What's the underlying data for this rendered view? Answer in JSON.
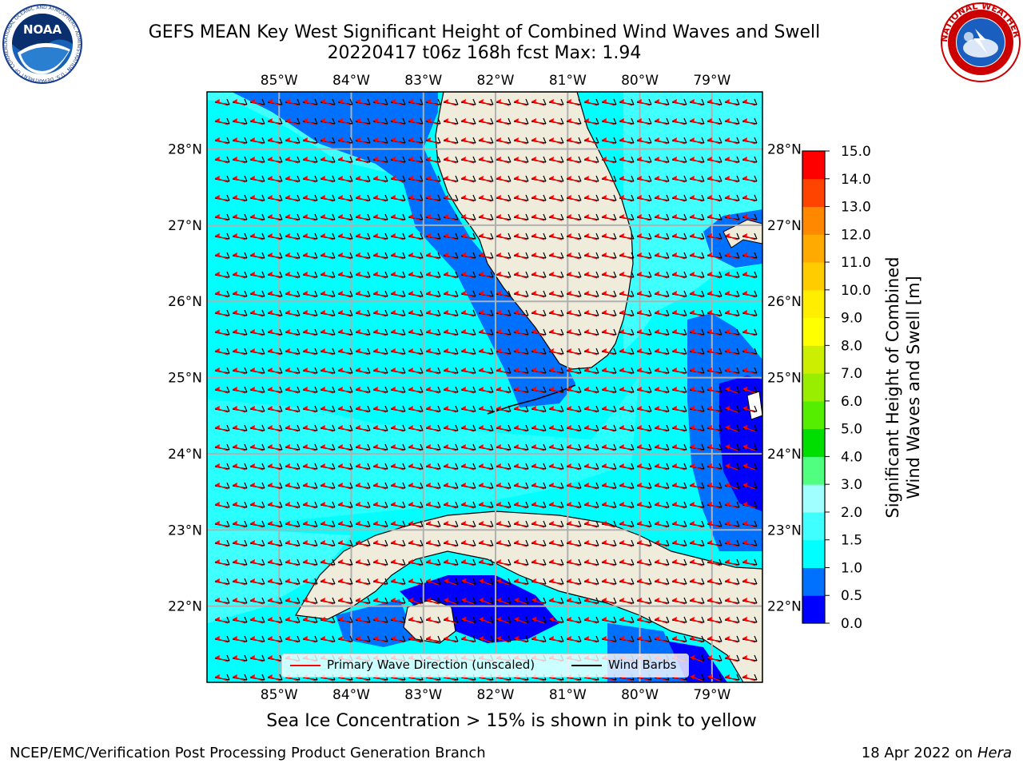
{
  "header": {
    "title_line1": "GEFS MEAN Key West Significant Height of Combined Wind Waves and Swell",
    "title_line2": "20220417 t06z 168h fcst   Max: 1.94"
  },
  "logos": {
    "noaa": {
      "text": "NOAA",
      "ring_text": "NATIONAL OCEANIC AND ATMOSPHERIC ADMINISTRATION · U.S. DEPARTMENT OF COMMERCE"
    },
    "nws": {
      "ring_text": "NATIONAL WEATHER SERVICE"
    }
  },
  "map": {
    "lon_ticks": [
      "85°W",
      "84°W",
      "83°W",
      "82°W",
      "81°W",
      "80°W",
      "79°W"
    ],
    "lat_ticks": [
      "28°N",
      "27°N",
      "26°N",
      "25°N",
      "24°N",
      "23°N",
      "22°N"
    ],
    "lon_values": [
      -85,
      -84,
      -83,
      -82,
      -81,
      -80,
      -79
    ],
    "lat_values": [
      28,
      27,
      26,
      25,
      24,
      23,
      22
    ],
    "extent": {
      "lon_min": -86.0,
      "lon_max": -78.3,
      "lat_min": 21.0,
      "lat_max": 28.75
    },
    "land_color": "#efecdc",
    "grid_color": "#b0b0b0"
  },
  "legend": {
    "wave_label": "Primary Wave Direction (unscaled)",
    "barb_label": "Wind Barbs",
    "wave_color": "#ff0000",
    "barb_color": "#000000"
  },
  "colorbar": {
    "label": "Significant Height of Combined\nWind Waves and Swell [m]",
    "ticks": [
      "0.0",
      "0.5",
      "1.0",
      "1.5",
      "2.0",
      "3.0",
      "4.0",
      "5.0",
      "6.0",
      "7.0",
      "8.0",
      "9.0",
      "10.0",
      "11.0",
      "12.0",
      "13.0",
      "14.0",
      "15.0"
    ],
    "colors": [
      "#0000ff",
      "#0070ff",
      "#00ffff",
      "#40ffff",
      "#a0ffff",
      "#50ff80",
      "#00dd00",
      "#55ee00",
      "#99ee00",
      "#ccee00",
      "#ffff00",
      "#ffee00",
      "#ffcc00",
      "#ffaa00",
      "#ff8800",
      "#ff4400",
      "#ff0000"
    ]
  },
  "note": "Sea Ice Concentration > 15% is shown in pink to yellow",
  "footer": {
    "left": "NCEP/EMC/Verification Post Processing Product Generation Branch",
    "right_prefix": "18 Apr 2022 on ",
    "right_host": "Hera"
  }
}
